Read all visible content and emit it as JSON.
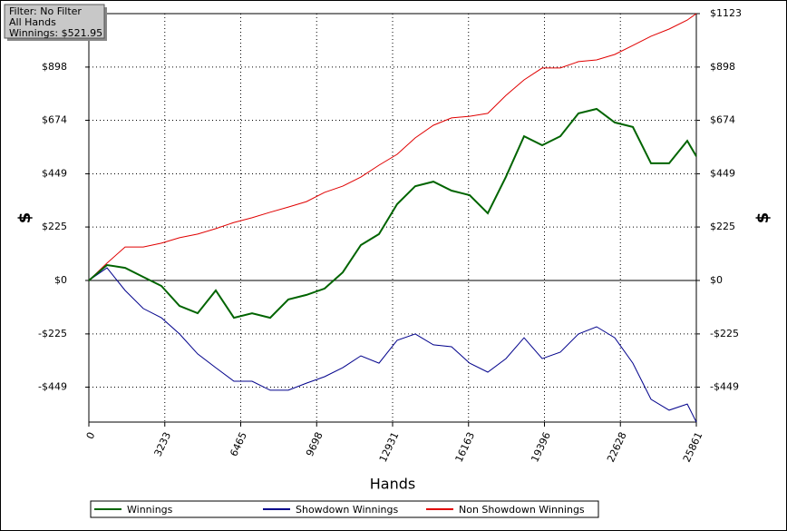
{
  "chart_data": {
    "type": "line",
    "info": [
      "Filter: No Filter",
      "All Hands",
      "Winnings: $521.95"
    ],
    "y_label": "$",
    "y2_label": "$",
    "x_label": "Hands",
    "x": [
      0,
      772,
      1544,
      2316,
      3088,
      3860,
      4632,
      5404,
      6176,
      6948,
      7720,
      8492,
      9264,
      10036,
      10808,
      11580,
      12352,
      13124,
      13896,
      14668,
      15440,
      16212,
      16984,
      17756,
      18528,
      19300,
      20072,
      20844,
      21616,
      22388,
      23160,
      23932,
      24704,
      25476,
      25861
    ],
    "series": [
      {
        "name": "Winnings",
        "color": "#006400",
        "values": [
          0,
          65,
          53,
          15,
          -23,
          -107,
          -138,
          -42,
          -157,
          -138,
          -157,
          -80,
          -61,
          -34,
          34,
          149,
          195,
          321,
          397,
          416,
          378,
          359,
          283,
          436,
          607,
          569,
          607,
          703,
          722,
          665,
          646,
          493,
          493,
          588,
          522
        ]
      },
      {
        "name": "Showdown Winnings",
        "color": "#00008b",
        "values": [
          0,
          53,
          -42,
          -118,
          -157,
          -225,
          -309,
          -367,
          -424,
          -424,
          -462,
          -462,
          -432,
          -405,
          -367,
          -317,
          -348,
          -252,
          -225,
          -271,
          -279,
          -348,
          -386,
          -329,
          -241,
          -329,
          -302,
          -225,
          -195,
          -241,
          -348,
          -500,
          -546,
          -520,
          -596
        ]
      },
      {
        "name": "Non Showdown Winnings",
        "color": "#e00000",
        "values": [
          0,
          73,
          141,
          141,
          157,
          180,
          195,
          218,
          244,
          264,
          287,
          309,
          332,
          371,
          397,
          435,
          485,
          531,
          600,
          653,
          684,
          691,
          703,
          779,
          844,
          894,
          894,
          921,
          928,
          951,
          989,
          1028,
          1058,
          1096,
          1123
        ]
      }
    ],
    "xlim": [
      0,
      25861
    ],
    "xticks": [
      0,
      3233,
      6465,
      9698,
      12931,
      16163,
      19396,
      22628,
      25861
    ],
    "ylim": [
      -596,
      1123
    ],
    "yticks": [
      {
        "value": -449,
        "label": "-$449"
      },
      {
        "value": -225,
        "label": "-$225"
      },
      {
        "value": 0,
        "label": "$0"
      },
      {
        "value": 225,
        "label": "$225"
      },
      {
        "value": 449,
        "label": "$449"
      },
      {
        "value": 674,
        "label": "$674"
      },
      {
        "value": 898,
        "label": "$898"
      },
      {
        "value": 1123,
        "label": "$1123"
      }
    ],
    "grid": true
  }
}
